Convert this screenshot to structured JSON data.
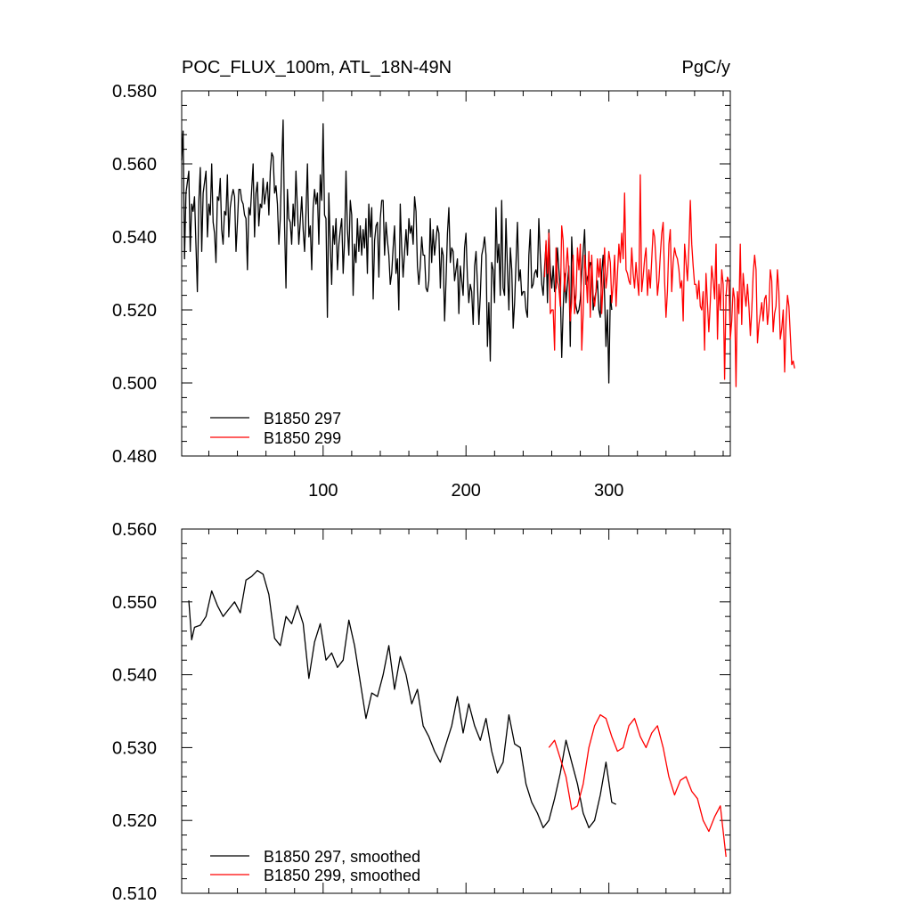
{
  "colors": {
    "series_a": "#000000",
    "series_b": "#ff0000"
  },
  "chart_data": [
    {
      "type": "line",
      "title": "POC_FLUX_100m, ATL_18N-49N",
      "units": "PgC/y",
      "xlim": [
        1,
        385
      ],
      "ylim": [
        0.48,
        0.58
      ],
      "x_ticks": [
        100,
        200,
        300
      ],
      "y_ticks": [
        0.48,
        0.5,
        0.52,
        0.54,
        0.56,
        0.58
      ],
      "y_tick_labels": [
        "0.480",
        "0.500",
        "0.520",
        "0.540",
        "0.560",
        "0.580"
      ],
      "x_tick_labels": [
        "100",
        "200",
        "300"
      ],
      "legend": [
        "B1850 297",
        "B1850 299"
      ],
      "legend_position": "bottom-left",
      "series": [
        {
          "name": "B1850 297",
          "color": "#000000",
          "x_start": 1,
          "values": [
            0.561,
            0.569,
            0.534,
            0.552,
            0.555,
            0.558,
            0.536,
            0.549,
            0.547,
            0.551,
            0.538,
            0.525,
            0.55,
            0.559,
            0.536,
            0.552,
            0.555,
            0.558,
            0.54,
            0.549,
            0.546,
            0.56,
            0.544,
            0.541,
            0.533,
            0.551,
            0.55,
            0.556,
            0.542,
            0.538,
            0.547,
            0.546,
            0.557,
            0.54,
            0.548,
            0.551,
            0.553,
            0.551,
            0.536,
            0.544,
            0.553,
            0.553,
            0.55,
            0.549,
            0.546,
            0.545,
            0.531,
            0.548,
            0.546,
            0.553,
            0.56,
            0.54,
            0.552,
            0.555,
            0.543,
            0.549,
            0.548,
            0.556,
            0.549,
            0.552,
            0.555,
            0.546,
            0.558,
            0.563,
            0.562,
            0.552,
            0.554,
            0.549,
            0.538,
            0.545,
            0.56,
            0.572,
            0.543,
            0.526,
            0.553,
            0.545,
            0.544,
            0.538,
            0.549,
            0.543,
            0.558,
            0.548,
            0.538,
            0.544,
            0.551,
            0.542,
            0.536,
            0.547,
            0.56,
            0.54,
            0.543,
            0.531,
            0.548,
            0.553,
            0.549,
            0.552,
            0.538,
            0.557,
            0.55,
            0.571,
            0.546,
            0.545,
            0.518,
            0.552,
            0.538,
            0.527,
            0.543,
            0.538,
            0.545,
            0.531,
            0.538,
            0.542,
            0.545,
            0.53,
            0.539,
            0.558,
            0.542,
            0.535,
            0.55,
            0.546,
            0.524,
            0.538,
            0.533,
            0.545,
            0.536,
            0.543,
            0.535,
            0.542,
            0.537,
            0.545,
            0.53,
            0.549,
            0.54,
            0.548,
            0.523,
            0.539,
            0.543,
            0.544,
            0.529,
            0.545,
            0.55,
            0.55,
            0.535,
            0.544,
            0.539,
            0.535,
            0.527,
            0.53,
            0.537,
            0.543,
            0.53,
            0.534,
            0.52,
            0.549,
            0.537,
            0.529,
            0.536,
            0.542,
            0.535,
            0.545,
            0.541,
            0.543,
            0.538,
            0.551,
            0.547,
            0.532,
            0.527,
            0.532,
            0.54,
            0.535,
            0.535,
            0.526,
            0.525,
            0.528,
            0.545,
            0.533,
            0.542,
            0.535,
            0.539,
            0.543,
            0.541,
            0.526,
            0.537,
            0.535,
            0.517,
            0.528,
            0.541,
            0.548,
            0.533,
            0.537,
            0.536,
            0.528,
            0.531,
            0.534,
            0.519,
            0.532,
            0.528,
            0.524,
            0.537,
            0.541,
            0.529,
            0.522,
            0.527,
            0.525,
            0.516,
            0.532,
            0.536,
            0.527,
            0.516,
            0.524,
            0.535,
            0.537,
            0.54,
            0.535,
            0.51,
            0.522,
            0.506,
            0.533,
            0.531,
            0.522,
            0.548,
            0.533,
            0.538,
            0.524,
            0.55,
            0.526,
            0.524,
            0.545,
            0.531,
            0.52,
            0.537,
            0.531,
            0.515,
            0.522,
            0.533,
            0.544,
            0.528,
            0.531,
            0.524,
            0.525,
            0.525,
            0.52,
            0.518,
            0.535,
            0.542,
            0.526,
            0.527,
            0.53,
            0.531,
            0.529,
            0.545,
            0.535,
            0.527,
            0.524,
            0.532,
            0.538,
            0.522,
            0.542,
            0.531,
            0.526,
            0.532,
            0.525,
            0.526,
            0.537,
            0.531,
            0.526,
            0.507,
            0.52,
            0.53,
            0.522,
            0.527,
            0.532,
            0.51,
            0.54,
            0.531,
            0.524,
            0.521,
            0.519,
            0.52,
            0.523,
            0.53,
            0.536,
            0.542,
            0.527,
            0.529,
            0.53,
            0.533,
            0.532,
            0.52,
            0.523,
            0.525,
            0.528,
            0.52,
            0.518,
            0.53,
            0.535,
            0.524,
            0.51,
            0.52,
            0.5,
            0.524,
            0.52
          ]
        },
        {
          "name": "B1850 299",
          "color": "#ff0000",
          "x_start": 255,
          "values": [
            0.529,
            0.539,
            0.53,
            0.541,
            0.519,
            0.52,
            0.52,
            0.509,
            0.537,
            0.528,
            0.526,
            0.521,
            0.543,
            0.539,
            0.525,
            0.531,
            0.537,
            0.53,
            0.517,
            0.522,
            0.535,
            0.519,
            0.524,
            0.537,
            0.531,
            0.538,
            0.509,
            0.519,
            0.535,
            0.53,
            0.522,
            0.536,
            0.518,
            0.535,
            0.524,
            0.521,
            0.525,
            0.534,
            0.529,
            0.534,
            0.519,
            0.528,
            0.537,
            0.526,
            0.53,
            0.536,
            0.533,
            0.522,
            0.527,
            0.535,
            0.521,
            0.53,
            0.538,
            0.533,
            0.541,
            0.534,
            0.552,
            0.531,
            0.53,
            0.528,
            0.527,
            0.537,
            0.53,
            0.526,
            0.533,
            0.528,
            0.524,
            0.557,
            0.525,
            0.529,
            0.534,
            0.537,
            0.524,
            0.531,
            0.526,
            0.534,
            0.542,
            0.54,
            0.533,
            0.524,
            0.528,
            0.535,
            0.541,
            0.544,
            0.528,
            0.518,
            0.525,
            0.538,
            0.542,
            0.525,
            0.533,
            0.537,
            0.535,
            0.534,
            0.531,
            0.526,
            0.528,
            0.517,
            0.538,
            0.533,
            0.528,
            0.537,
            0.55,
            0.538,
            0.532,
            0.527,
            0.527,
            0.523,
            0.528,
            0.521,
            0.52,
            0.525,
            0.509,
            0.53,
            0.522,
            0.514,
            0.522,
            0.532,
            0.528,
            0.523,
            0.538,
            0.512,
            0.527,
            0.52,
            0.531,
            0.527,
            0.501,
            0.524,
            0.529,
            0.528,
            0.512,
            0.517,
            0.526,
            0.523,
            0.499,
            0.525,
            0.519,
            0.538,
            0.516,
            0.53,
            0.525,
            0.521,
            0.527,
            0.521,
            0.513,
            0.52,
            0.53,
            0.535,
            0.531,
            0.511,
            0.516,
            0.519,
            0.522,
            0.517,
            0.523,
            0.524,
            0.516,
            0.52,
            0.531,
            0.528,
            0.514,
            0.519,
            0.521,
            0.531,
            0.525,
            0.512,
            0.515,
            0.52,
            0.503,
            0.517,
            0.524,
            0.521,
            0.513,
            0.505,
            0.506,
            0.504
          ]
        }
      ]
    },
    {
      "type": "line",
      "title": "",
      "xlim": [
        1,
        385
      ],
      "ylim": [
        0.51,
        0.56
      ],
      "x_ticks": [
        100,
        200,
        300
      ],
      "y_ticks": [
        0.51,
        0.52,
        0.53,
        0.54,
        0.55,
        0.56
      ],
      "y_tick_labels": [
        "0.510",
        "0.520",
        "0.530",
        "0.540",
        "0.550",
        "0.560"
      ],
      "legend": [
        "B1850 297, smoothed",
        "B1850 299, smoothed"
      ],
      "legend_position": "bottom-left",
      "series": [
        {
          "name": "B1850 297, smoothed",
          "color": "#000000",
          "x": [
            6,
            8,
            10,
            14,
            18,
            22,
            26,
            30,
            34,
            38,
            42,
            46,
            50,
            54,
            58,
            62,
            66,
            70,
            74,
            78,
            82,
            86,
            90,
            94,
            98,
            102,
            106,
            110,
            114,
            118,
            122,
            126,
            130,
            134,
            138,
            142,
            146,
            150,
            154,
            158,
            162,
            166,
            170,
            174,
            178,
            182,
            186,
            190,
            194,
            198,
            202,
            206,
            210,
            214,
            218,
            222,
            226,
            230,
            234,
            238,
            242,
            246,
            250,
            254,
            258,
            262,
            266,
            270,
            274,
            278,
            282,
            286,
            290,
            294,
            298,
            302,
            305
          ],
          "values": [
            0.5502,
            0.5448,
            0.5465,
            0.5468,
            0.548,
            0.5515,
            0.5495,
            0.548,
            0.549,
            0.55,
            0.5485,
            0.553,
            0.5535,
            0.5543,
            0.5538,
            0.551,
            0.545,
            0.544,
            0.548,
            0.547,
            0.5495,
            0.547,
            0.5395,
            0.5445,
            0.547,
            0.542,
            0.543,
            0.541,
            0.542,
            0.5475,
            0.544,
            0.539,
            0.534,
            0.5375,
            0.537,
            0.54,
            0.544,
            0.538,
            0.5425,
            0.54,
            0.536,
            0.538,
            0.533,
            0.5315,
            0.5295,
            0.528,
            0.5305,
            0.533,
            0.537,
            0.532,
            0.536,
            0.533,
            0.531,
            0.534,
            0.5295,
            0.5265,
            0.528,
            0.5345,
            0.5305,
            0.53,
            0.525,
            0.5225,
            0.521,
            0.519,
            0.52,
            0.523,
            0.5265,
            0.531,
            0.528,
            0.525,
            0.521,
            0.519,
            0.52,
            0.5235,
            0.528,
            0.5225,
            0.5222
          ]
        },
        {
          "name": "B1850 299, smoothed",
          "color": "#ff0000",
          "x": [
            258,
            262,
            266,
            270,
            274,
            278,
            282,
            286,
            290,
            294,
            298,
            302,
            306,
            310,
            314,
            318,
            322,
            326,
            330,
            334,
            338,
            342,
            346,
            350,
            354,
            358,
            362,
            366,
            370,
            374,
            378,
            382
          ],
          "values": [
            0.53,
            0.531,
            0.5285,
            0.526,
            0.5215,
            0.522,
            0.525,
            0.53,
            0.533,
            0.5345,
            0.534,
            0.5315,
            0.5295,
            0.53,
            0.533,
            0.534,
            0.5315,
            0.53,
            0.532,
            0.533,
            0.53,
            0.526,
            0.5235,
            0.5255,
            0.526,
            0.524,
            0.523,
            0.52,
            0.5185,
            0.5205,
            0.522,
            0.515
          ]
        }
      ]
    }
  ]
}
